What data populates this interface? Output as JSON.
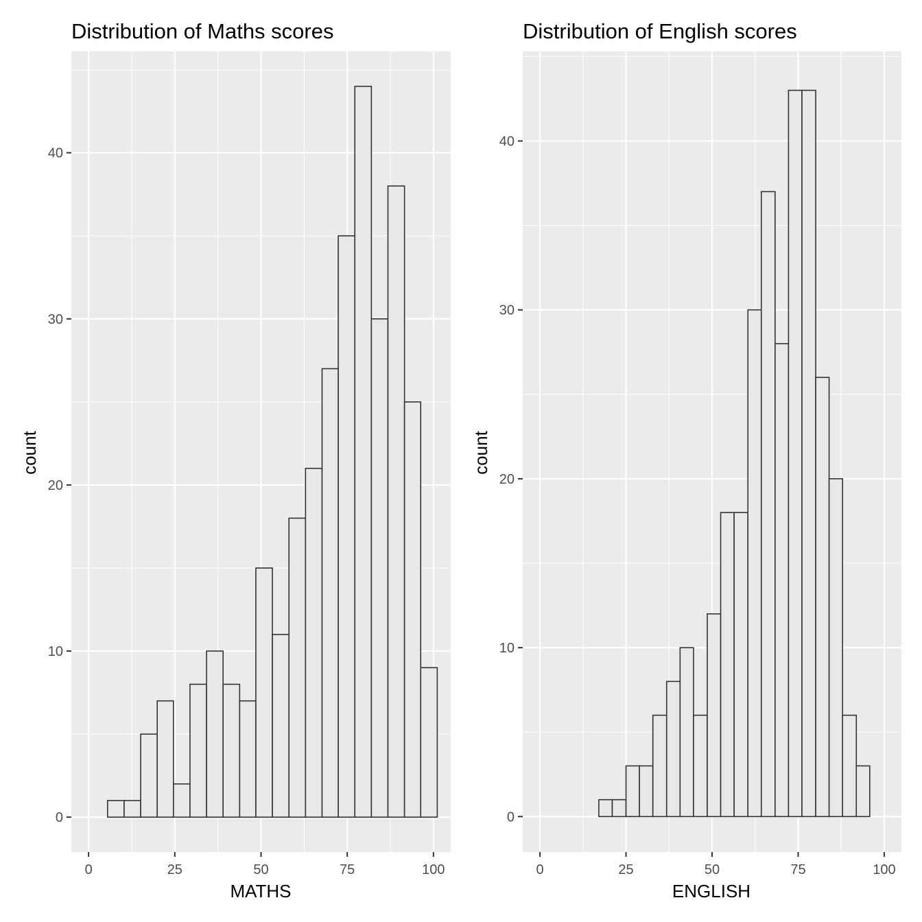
{
  "chart_data": [
    {
      "type": "bar",
      "title": "Distribution of Maths scores",
      "xlabel": "MATHS",
      "ylabel": "count",
      "xlim": [
        -5,
        105
      ],
      "ylim": [
        -2.1,
        46.1
      ],
      "xticks": [
        0,
        25,
        50,
        75,
        100
      ],
      "yticks": [
        0,
        10,
        20,
        30,
        40
      ],
      "grid": true,
      "bins": [
        {
          "x0": 5.5,
          "x1": 10.3,
          "count": 1
        },
        {
          "x0": 10.3,
          "x1": 15.1,
          "count": 1
        },
        {
          "x0": 15.1,
          "x1": 19.9,
          "count": 5
        },
        {
          "x0": 19.9,
          "x1": 24.6,
          "count": 7
        },
        {
          "x0": 24.6,
          "x1": 29.4,
          "count": 2
        },
        {
          "x0": 29.4,
          "x1": 34.2,
          "count": 8
        },
        {
          "x0": 34.2,
          "x1": 39.0,
          "count": 10
        },
        {
          "x0": 39.0,
          "x1": 43.8,
          "count": 8
        },
        {
          "x0": 43.8,
          "x1": 48.5,
          "count": 7
        },
        {
          "x0": 48.5,
          "x1": 53.3,
          "count": 15
        },
        {
          "x0": 53.3,
          "x1": 58.1,
          "count": 11
        },
        {
          "x0": 58.1,
          "x1": 62.9,
          "count": 18
        },
        {
          "x0": 62.9,
          "x1": 67.7,
          "count": 21
        },
        {
          "x0": 67.7,
          "x1": 72.4,
          "count": 27
        },
        {
          "x0": 72.4,
          "x1": 77.2,
          "count": 35
        },
        {
          "x0": 77.2,
          "x1": 82.0,
          "count": 44
        },
        {
          "x0": 82.0,
          "x1": 86.8,
          "count": 30
        },
        {
          "x0": 86.8,
          "x1": 91.6,
          "count": 38
        },
        {
          "x0": 91.6,
          "x1": 96.3,
          "count": 25
        },
        {
          "x0": 96.3,
          "x1": 101.1,
          "count": 9
        }
      ]
    },
    {
      "type": "bar",
      "title": "Distribution of English scores",
      "xlabel": "ENGLISH",
      "ylabel": "count",
      "xlim": [
        -5,
        105
      ],
      "ylim": [
        -2.1,
        45.3
      ],
      "xticks": [
        0,
        25,
        50,
        75,
        100
      ],
      "yticks": [
        0,
        10,
        20,
        30,
        40
      ],
      "grid": true,
      "bins": [
        {
          "x0": 17.1,
          "x1": 21.0,
          "count": 1
        },
        {
          "x0": 21.0,
          "x1": 25.0,
          "count": 1
        },
        {
          "x0": 25.0,
          "x1": 28.9,
          "count": 3
        },
        {
          "x0": 28.9,
          "x1": 32.8,
          "count": 3
        },
        {
          "x0": 32.8,
          "x1": 36.8,
          "count": 6
        },
        {
          "x0": 36.8,
          "x1": 40.7,
          "count": 8
        },
        {
          "x0": 40.7,
          "x1": 44.6,
          "count": 10
        },
        {
          "x0": 44.6,
          "x1": 48.6,
          "count": 6
        },
        {
          "x0": 48.6,
          "x1": 52.5,
          "count": 12
        },
        {
          "x0": 52.5,
          "x1": 56.4,
          "count": 18
        },
        {
          "x0": 56.4,
          "x1": 60.4,
          "count": 18
        },
        {
          "x0": 60.4,
          "x1": 64.3,
          "count": 30
        },
        {
          "x0": 64.3,
          "x1": 68.3,
          "count": 37
        },
        {
          "x0": 68.3,
          "x1": 72.2,
          "count": 28
        },
        {
          "x0": 72.2,
          "x1": 76.1,
          "count": 43
        },
        {
          "x0": 76.1,
          "x1": 80.1,
          "count": 43
        },
        {
          "x0": 80.1,
          "x1": 84.0,
          "count": 26
        },
        {
          "x0": 84.0,
          "x1": 87.9,
          "count": 20
        },
        {
          "x0": 87.9,
          "x1": 91.9,
          "count": 6
        },
        {
          "x0": 91.9,
          "x1": 95.8,
          "count": 3
        }
      ]
    }
  ]
}
